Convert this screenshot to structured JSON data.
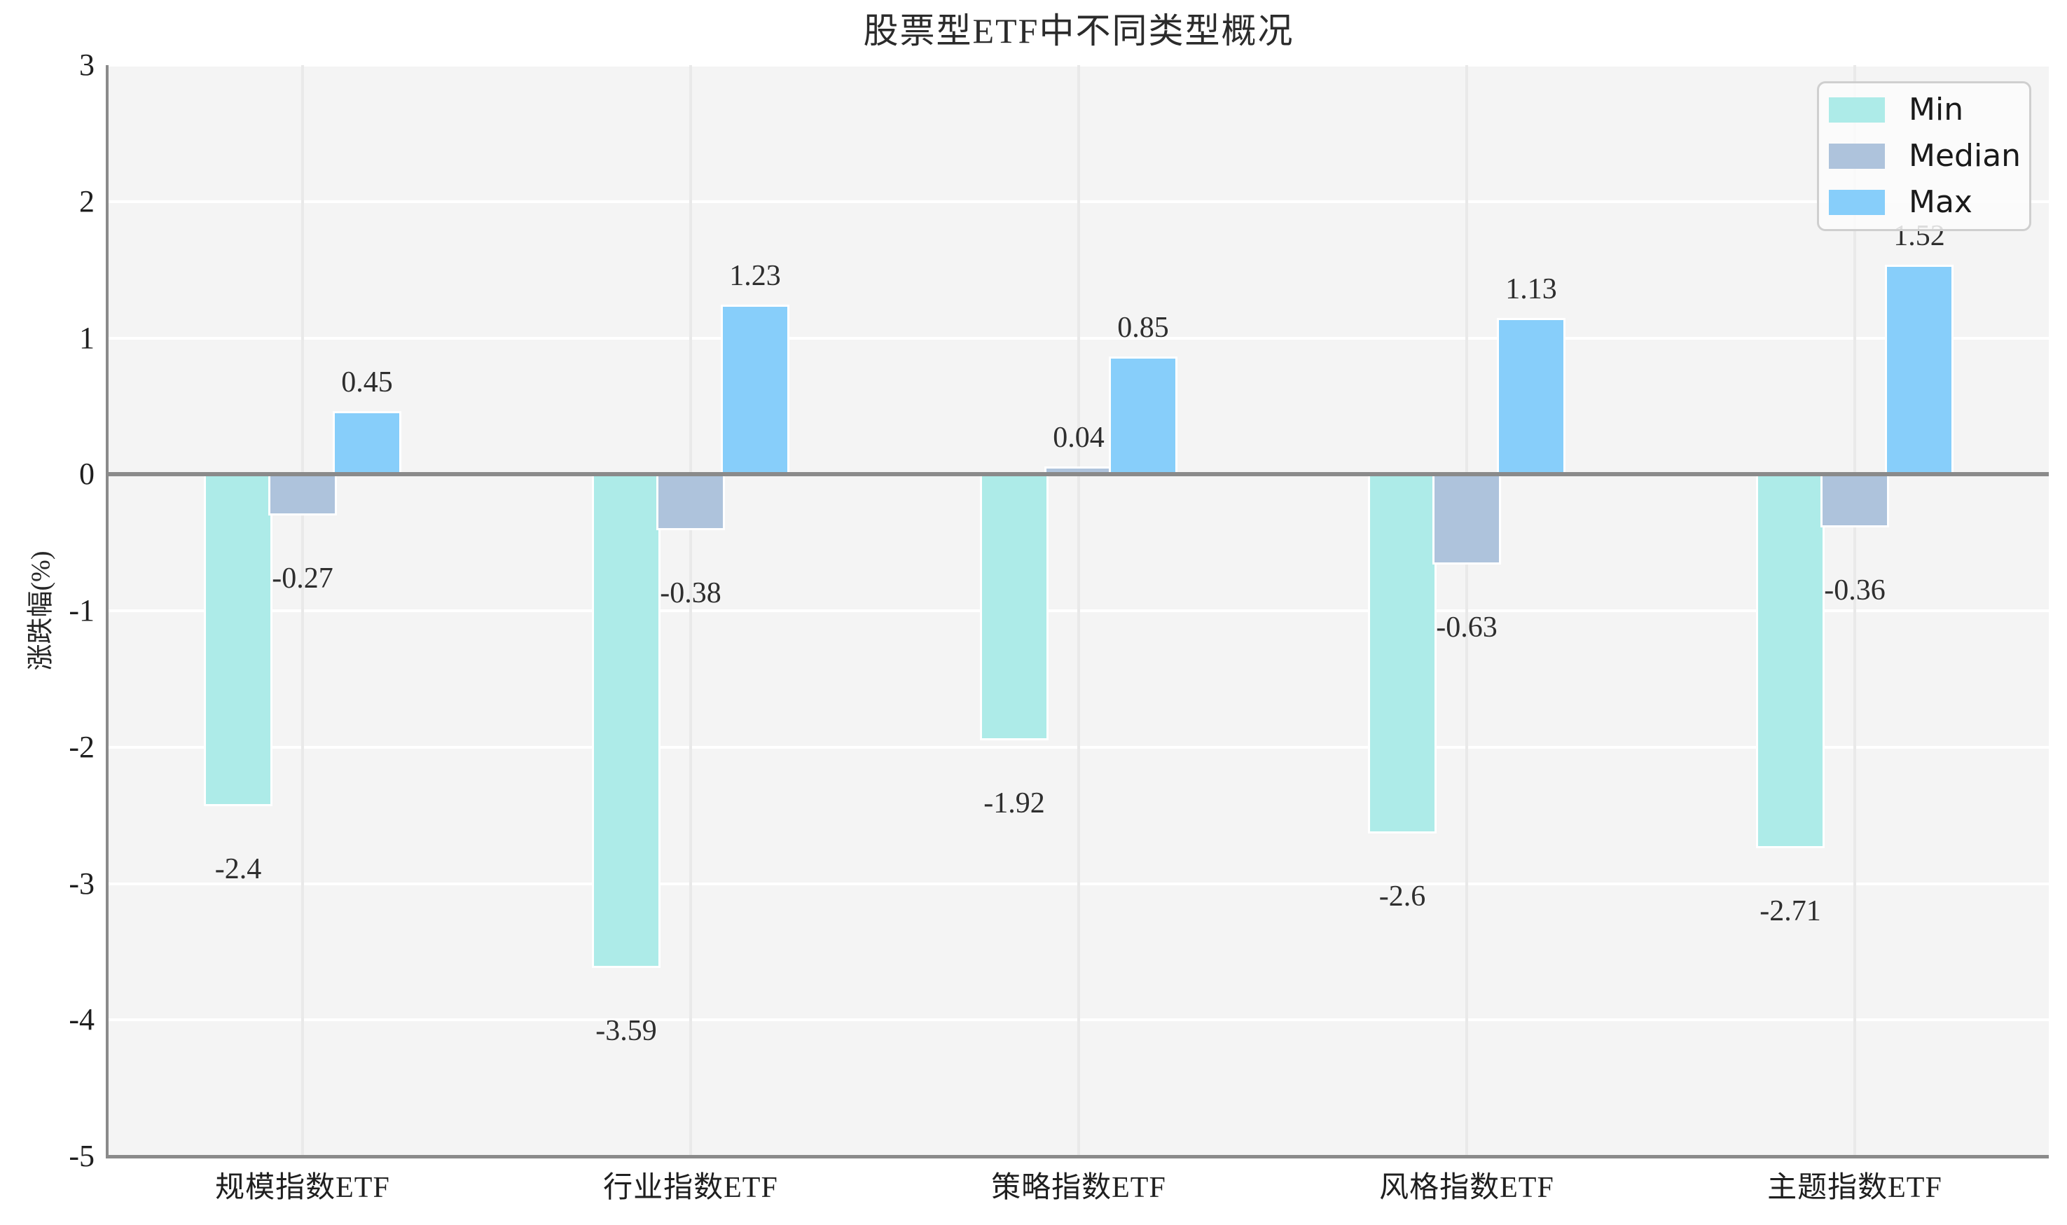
{
  "chart_data": {
    "type": "bar",
    "title": "股票型ETF中不同类型概况",
    "ylabel": "涨跌幅(%)",
    "xlabel": "",
    "categories": [
      "规模指数ETF",
      "行业指数ETF",
      "策略指数ETF",
      "风格指数ETF",
      "主题指数ETF"
    ],
    "series": [
      {
        "name": "Min",
        "color": "#ADEBE8",
        "values": [
          -2.4,
          -3.59,
          -1.92,
          -2.6,
          -2.71
        ]
      },
      {
        "name": "Median",
        "color": "#AEC3DC",
        "values": [
          -0.27,
          -0.38,
          0.04,
          -0.63,
          -0.36
        ]
      },
      {
        "name": "Max",
        "color": "#87CEFA",
        "values": [
          0.45,
          1.23,
          0.85,
          1.13,
          1.52
        ]
      }
    ],
    "ylim": [
      -5,
      3
    ],
    "yticks": [
      3,
      2,
      1,
      0,
      -1,
      -2,
      -3,
      -4,
      -5
    ],
    "grid": true,
    "zero_line": true,
    "legend_position": "upper right",
    "legend_labels": [
      "Min",
      "Median",
      "Max"
    ]
  },
  "style": {
    "plot_bg": "#F4F4F4",
    "grid_h_color": "#FFFFFF",
    "grid_v_color": "#E9E9E9",
    "zero_line_color": "#8A8A8A",
    "spine_color": "#8A8A8A",
    "text_color": "#262626"
  }
}
